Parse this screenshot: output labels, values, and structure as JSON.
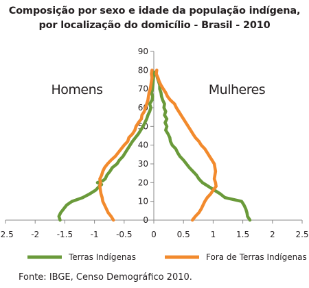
{
  "title": {
    "line1": "Composição por sexo e idade da população indígena,",
    "line2": "por localização do domicílio - Brasil - 2010"
  },
  "source": "Fonte: IBGE, Censo Demográfico 2010.",
  "colors": {
    "terras": "#6a9a3a",
    "fora": "#f28a2d",
    "axis": "#8a8a8a"
  },
  "chart_data": {
    "type": "line",
    "annotations": {
      "left": "Homens",
      "right": "Mulheres"
    },
    "xlim": [
      -2.5,
      2.5
    ],
    "ylim": [
      0,
      90
    ],
    "xticks": [
      -2.5,
      -2,
      -1.5,
      -1,
      -0.5,
      0,
      0.5,
      1,
      1.5,
      2,
      2.5
    ],
    "xtick_labels": [
      "-2.5",
      "-2",
      "-1.5",
      "-1",
      "-0.5",
      "0",
      "0.5",
      "1",
      "1.5",
      "2",
      "2.5"
    ],
    "yticks": [
      0,
      10,
      20,
      30,
      40,
      50,
      60,
      70,
      80,
      90
    ],
    "ytick_labels": [
      "0",
      "10",
      "20",
      "30",
      "40",
      "50",
      "60",
      "70",
      "80",
      "90"
    ],
    "grid": false,
    "legend_position": "bottom",
    "series": [
      {
        "name": "Terras Indígenas",
        "color": "#6a9a3a",
        "points": [
          [
            -1.58,
            0
          ],
          [
            -1.6,
            2
          ],
          [
            -1.57,
            4
          ],
          [
            -1.52,
            6
          ],
          [
            -1.47,
            8
          ],
          [
            -1.38,
            10
          ],
          [
            -1.2,
            12
          ],
          [
            -1.08,
            14
          ],
          [
            -0.98,
            16
          ],
          [
            -0.92,
            18
          ],
          [
            -0.88,
            19
          ],
          [
            -0.95,
            20
          ],
          [
            -0.86,
            21
          ],
          [
            -0.82,
            22
          ],
          [
            -0.79,
            24
          ],
          [
            -0.74,
            26
          ],
          [
            -0.7,
            28
          ],
          [
            -0.62,
            30
          ],
          [
            -0.58,
            32
          ],
          [
            -0.52,
            34
          ],
          [
            -0.48,
            36
          ],
          [
            -0.44,
            38
          ],
          [
            -0.4,
            40
          ],
          [
            -0.36,
            42
          ],
          [
            -0.31,
            44
          ],
          [
            -0.26,
            46
          ],
          [
            -0.22,
            48
          ],
          [
            -0.18,
            50
          ],
          [
            -0.15,
            52
          ],
          [
            -0.12,
            54
          ],
          [
            -0.1,
            56
          ],
          [
            -0.07,
            58
          ],
          [
            -0.05,
            60
          ],
          [
            -0.07,
            62
          ],
          [
            -0.03,
            64
          ],
          [
            -0.02,
            66
          ],
          [
            -0.04,
            68
          ],
          [
            -0.02,
            70
          ],
          [
            -0.01,
            74
          ],
          [
            0.0,
            78
          ],
          [
            -0.01,
            79
          ],
          null,
          [
            0.02,
            79
          ],
          [
            0.04,
            78
          ],
          [
            0.06,
            76
          ],
          [
            0.08,
            74
          ],
          [
            0.1,
            72
          ],
          [
            0.1,
            70
          ],
          [
            0.12,
            68
          ],
          [
            0.13,
            66
          ],
          [
            0.15,
            64
          ],
          [
            0.18,
            62
          ],
          [
            0.17,
            60
          ],
          [
            0.2,
            58
          ],
          [
            0.18,
            56
          ],
          [
            0.22,
            54
          ],
          [
            0.19,
            52
          ],
          [
            0.22,
            50
          ],
          [
            0.2,
            48
          ],
          [
            0.24,
            46
          ],
          [
            0.27,
            44
          ],
          [
            0.28,
            42
          ],
          [
            0.31,
            40
          ],
          [
            0.37,
            38
          ],
          [
            0.4,
            36
          ],
          [
            0.44,
            34
          ],
          [
            0.5,
            32
          ],
          [
            0.55,
            30
          ],
          [
            0.6,
            28
          ],
          [
            0.66,
            26
          ],
          [
            0.72,
            24
          ],
          [
            0.76,
            22
          ],
          [
            0.82,
            20
          ],
          [
            0.92,
            18
          ],
          [
            1.02,
            16
          ],
          [
            1.12,
            14
          ],
          [
            1.2,
            12
          ],
          [
            1.48,
            10
          ],
          [
            1.52,
            8
          ],
          [
            1.55,
            6
          ],
          [
            1.57,
            4
          ],
          [
            1.58,
            2
          ],
          [
            1.62,
            0
          ]
        ]
      },
      {
        "name": "Fora de Terras Indígenas",
        "color": "#f28a2d",
        "points": [
          [
            -0.68,
            0
          ],
          [
            -0.72,
            2
          ],
          [
            -0.77,
            4
          ],
          [
            -0.8,
            6
          ],
          [
            -0.83,
            8
          ],
          [
            -0.86,
            10
          ],
          [
            -0.87,
            12
          ],
          [
            -0.89,
            14
          ],
          [
            -0.9,
            16
          ],
          [
            -0.91,
            18
          ],
          [
            -0.9,
            20
          ],
          [
            -0.91,
            22
          ],
          [
            -0.88,
            24
          ],
          [
            -0.86,
            26
          ],
          [
            -0.83,
            28
          ],
          [
            -0.78,
            30
          ],
          [
            -0.72,
            32
          ],
          [
            -0.65,
            34
          ],
          [
            -0.6,
            36
          ],
          [
            -0.55,
            38
          ],
          [
            -0.5,
            40
          ],
          [
            -0.44,
            42
          ],
          [
            -0.42,
            44
          ],
          [
            -0.36,
            46
          ],
          [
            -0.32,
            48
          ],
          [
            -0.3,
            50
          ],
          [
            -0.26,
            52
          ],
          [
            -0.21,
            54
          ],
          [
            -0.2,
            56
          ],
          [
            -0.16,
            58
          ],
          [
            -0.14,
            60
          ],
          [
            -0.12,
            62
          ],
          [
            -0.1,
            64
          ],
          [
            -0.09,
            66
          ],
          [
            -0.08,
            68
          ],
          [
            -0.06,
            70
          ],
          [
            -0.05,
            72
          ],
          [
            -0.04,
            74
          ],
          [
            -0.03,
            76
          ],
          [
            -0.04,
            78
          ],
          [
            -0.03,
            80
          ],
          null,
          [
            0.05,
            80
          ],
          [
            0.04,
            78
          ],
          [
            0.07,
            76
          ],
          [
            0.09,
            74
          ],
          [
            0.12,
            72
          ],
          [
            0.16,
            70
          ],
          [
            0.2,
            68
          ],
          [
            0.23,
            66
          ],
          [
            0.28,
            64
          ],
          [
            0.35,
            62
          ],
          [
            0.38,
            60
          ],
          [
            0.42,
            58
          ],
          [
            0.46,
            56
          ],
          [
            0.5,
            54
          ],
          [
            0.54,
            52
          ],
          [
            0.58,
            50
          ],
          [
            0.62,
            48
          ],
          [
            0.66,
            46
          ],
          [
            0.7,
            44
          ],
          [
            0.76,
            42
          ],
          [
            0.8,
            40
          ],
          [
            0.86,
            38
          ],
          [
            0.9,
            36
          ],
          [
            0.94,
            34
          ],
          [
            0.98,
            32
          ],
          [
            1.02,
            30
          ],
          [
            1.03,
            28
          ],
          [
            1.04,
            26
          ],
          [
            1.03,
            24
          ],
          [
            1.02,
            22
          ],
          [
            1.04,
            20
          ],
          [
            1.05,
            18
          ],
          [
            1.0,
            16
          ],
          [
            0.96,
            14
          ],
          [
            0.9,
            12
          ],
          [
            0.86,
            10
          ],
          [
            0.83,
            8
          ],
          [
            0.8,
            6
          ],
          [
            0.76,
            4
          ],
          [
            0.7,
            2
          ],
          [
            0.65,
            0
          ]
        ]
      }
    ]
  }
}
